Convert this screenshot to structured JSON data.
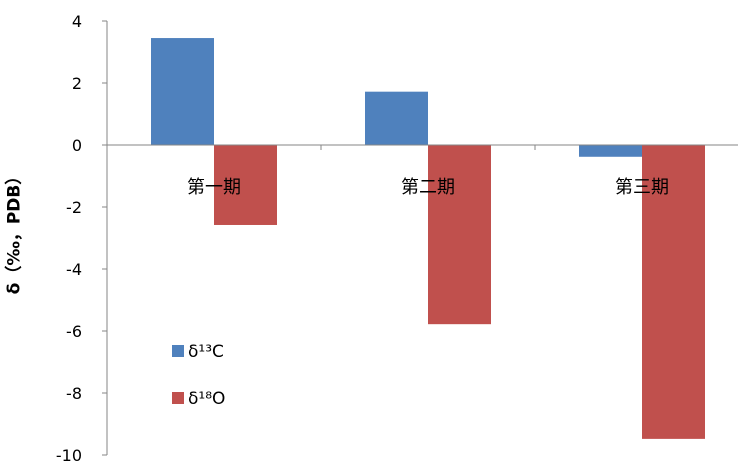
{
  "chart_data": {
    "type": "bar",
    "title": "",
    "xlabel": "",
    "ylabel": "δ（‰，PDB）",
    "categories": [
      "第一期",
      "第二期",
      "第三期"
    ],
    "series": [
      {
        "name": "δ¹³C",
        "values": [
          3.45,
          1.72,
          -0.38
        ],
        "color": "#4F81BD"
      },
      {
        "name": "δ¹⁸O",
        "values": [
          -2.58,
          -5.78,
          -9.48
        ],
        "color": "#C0504D"
      }
    ],
    "ylim": [
      -10,
      4
    ],
    "yticks": [
      4,
      2,
      0,
      -2,
      -4,
      -6,
      -8,
      -10
    ],
    "grid": false,
    "legend_position": "lower-left"
  }
}
